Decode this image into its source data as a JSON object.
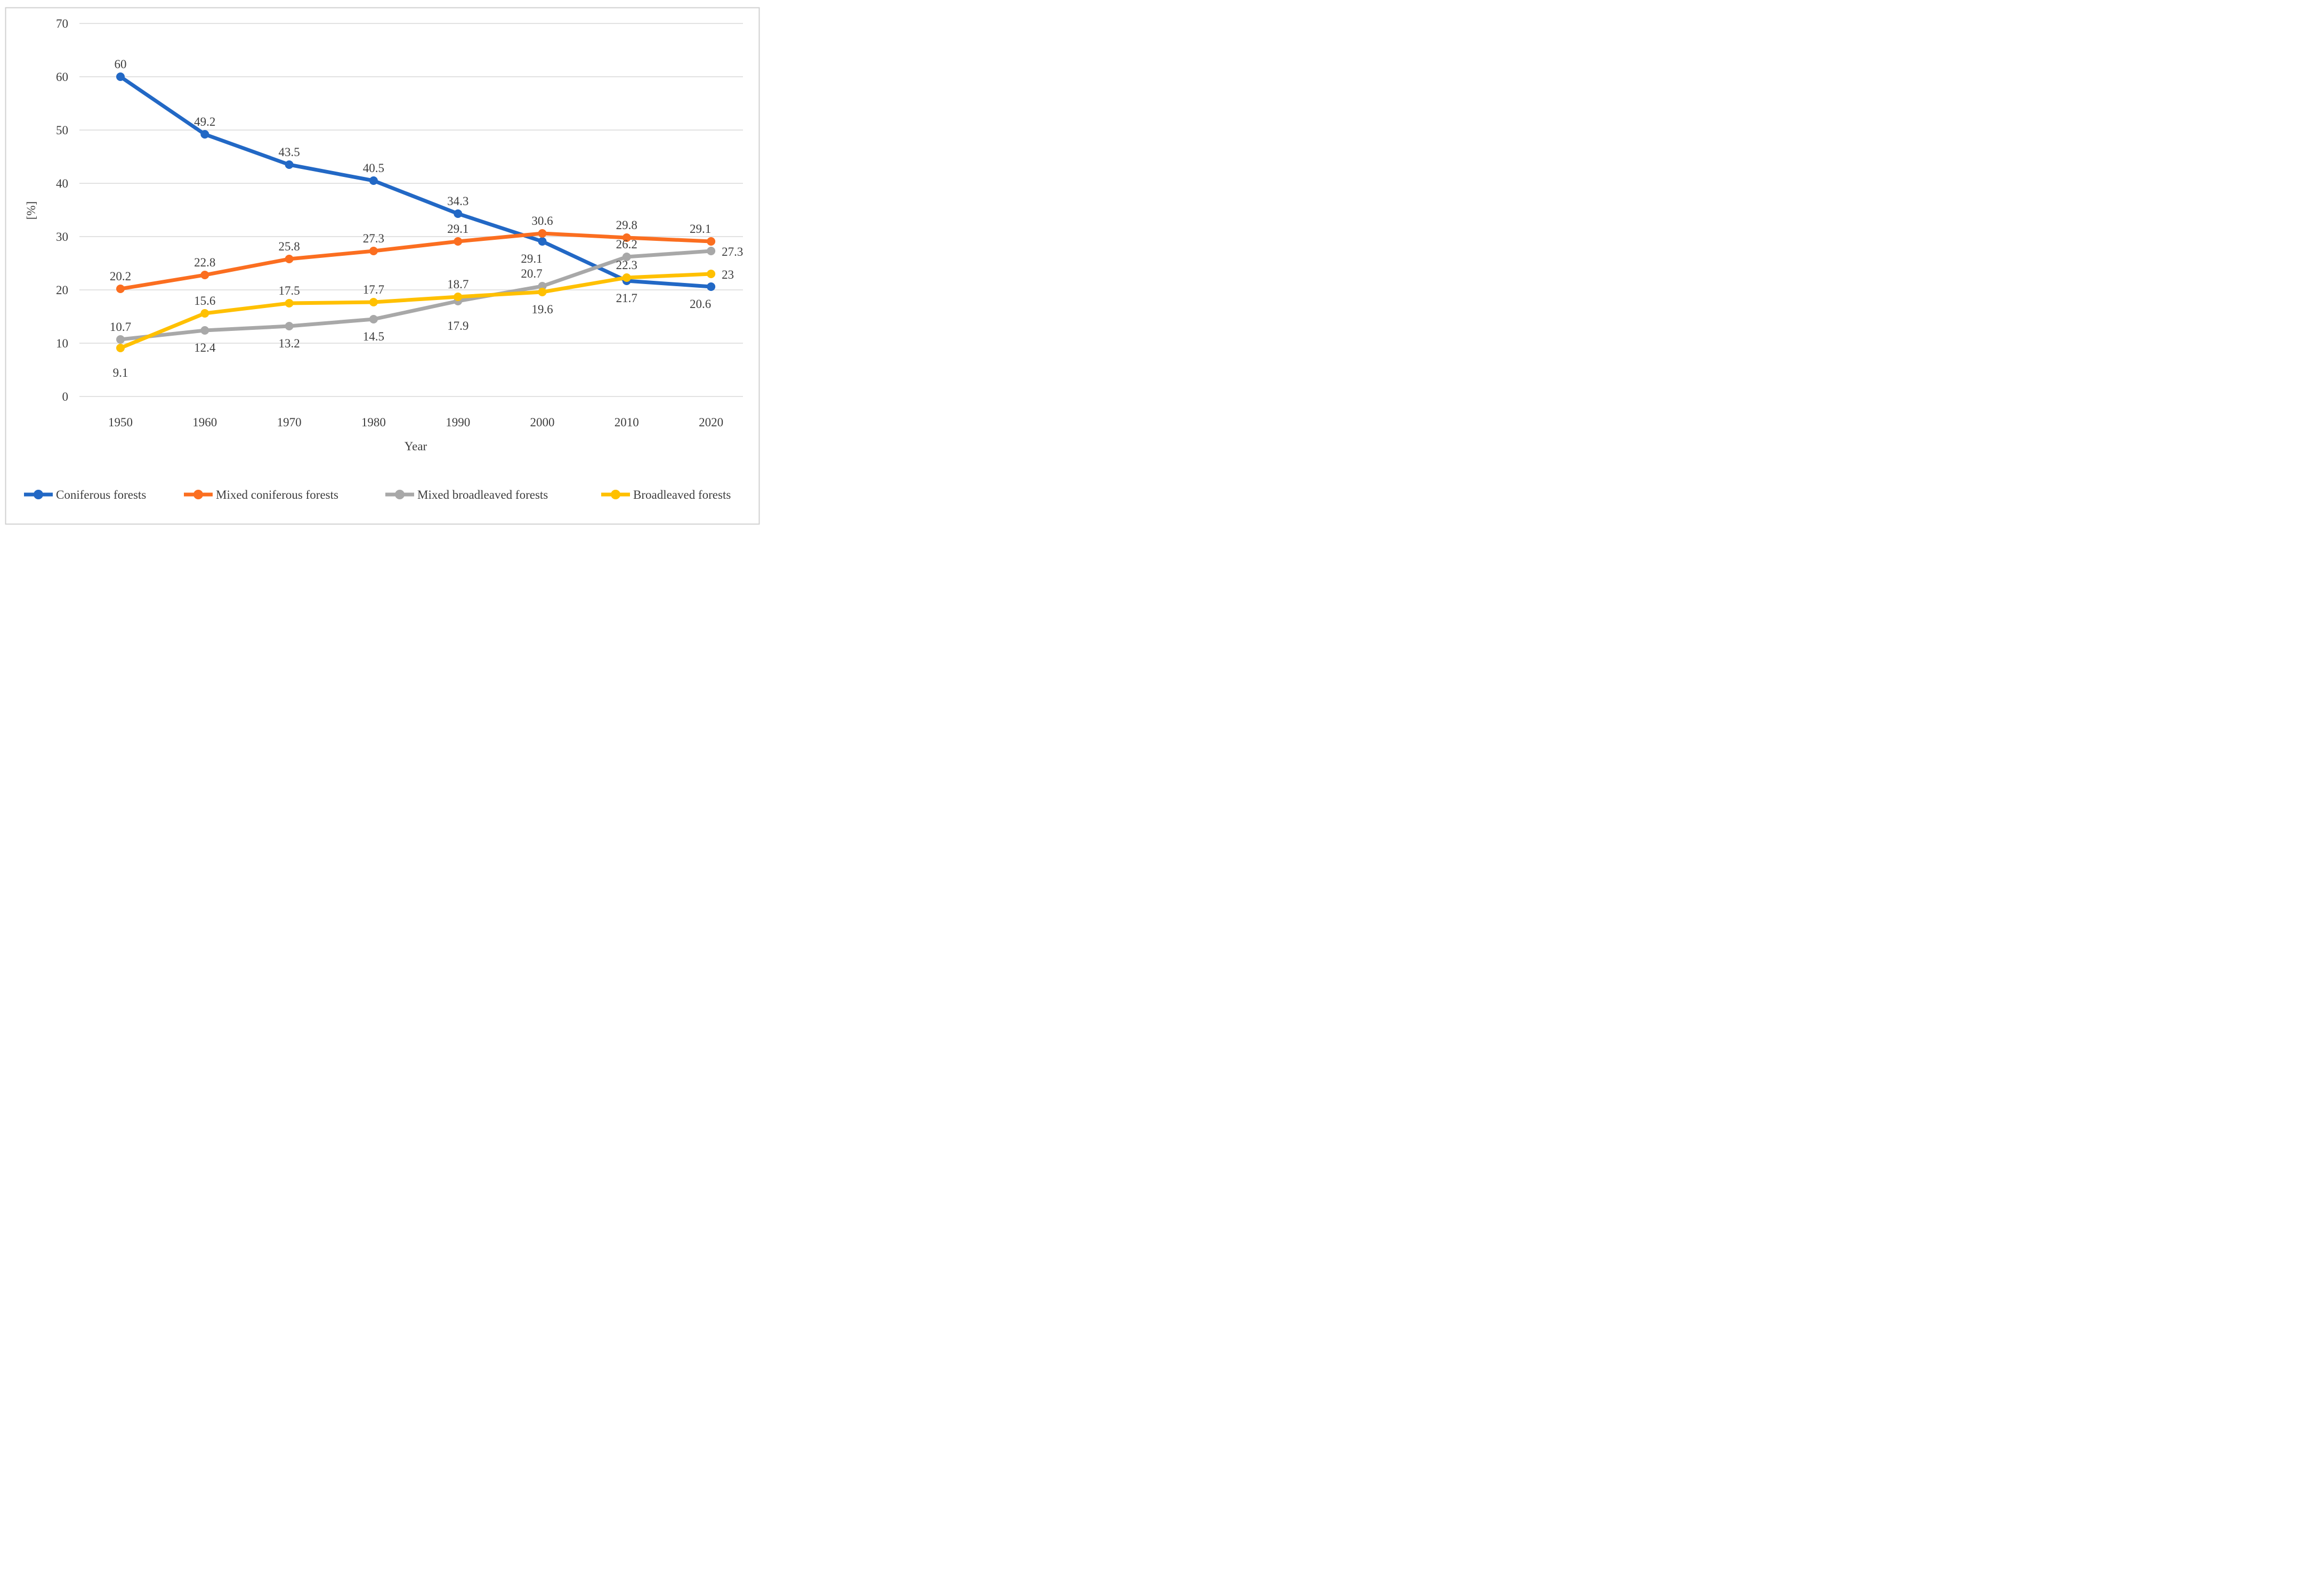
{
  "figure": {
    "background_color": "#FFFFFF",
    "frame_color": "#D0D0D0"
  },
  "chart_data": {
    "type": "line",
    "title": "",
    "xlabel": "Year",
    "ylabel": "[%]",
    "x_categories": [
      "1950",
      "1960",
      "1970",
      "1980",
      "1990",
      "2000",
      "2010",
      "2020"
    ],
    "y_ticks": [
      0,
      10,
      20,
      30,
      40,
      50,
      60,
      70
    ],
    "ylim": [
      0,
      70
    ],
    "grid": "horizontal",
    "gridline_color": "#D9D9D9",
    "label_color": "#3D3D3D",
    "legend_position": "bottom",
    "series": [
      {
        "name": "Coniferous forests",
        "color": "#2268C5",
        "values": [
          60,
          49.2,
          43.5,
          40.5,
          34.3,
          29.1,
          21.7,
          20.6
        ],
        "label_pos": [
          "above",
          "above",
          "above",
          "above",
          "above",
          "below-left",
          "below",
          "below-left"
        ]
      },
      {
        "name": "Mixed coniferous forests",
        "color": "#FB6E20",
        "values": [
          20.2,
          22.8,
          25.8,
          27.3,
          29.1,
          30.6,
          29.8,
          29.1
        ],
        "label_pos": [
          "above",
          "above",
          "above",
          "above",
          "above",
          "above",
          "above",
          "above-left"
        ]
      },
      {
        "name": "Mixed broadleaved forests",
        "color": "#A8A8A8",
        "values": [
          10.7,
          12.4,
          13.2,
          14.5,
          17.9,
          20.7,
          26.2,
          27.3
        ],
        "label_pos": [
          "above",
          "below",
          "below",
          "below",
          "below-far",
          "above-left",
          "above",
          "right"
        ]
      },
      {
        "name": "Broadleaved forests",
        "color": "#FFC000",
        "values": [
          9.1,
          15.6,
          17.5,
          17.7,
          18.7,
          19.6,
          22.3,
          23
        ],
        "label_pos": [
          "below-far",
          "above",
          "above",
          "above",
          "above",
          "below",
          "above",
          "right"
        ]
      }
    ]
  }
}
